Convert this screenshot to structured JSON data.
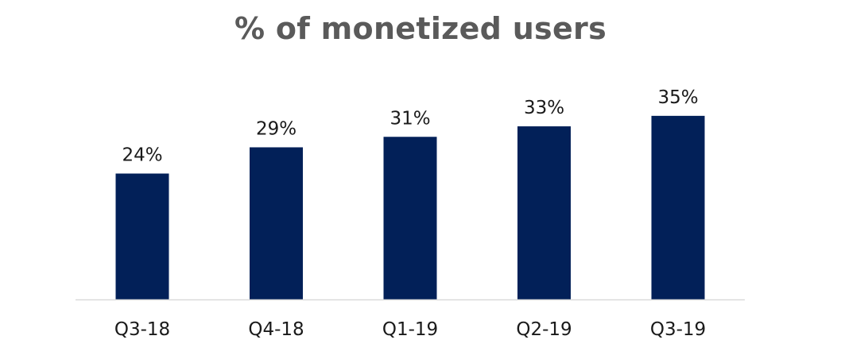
{
  "chart_data": {
    "type": "bar",
    "title": "% of monetized users",
    "categories": [
      "Q3-18",
      "Q4-18",
      "Q1-19",
      "Q2-19",
      "Q3-19"
    ],
    "values": [
      24,
      29,
      31,
      33,
      35
    ],
    "data_labels": [
      "24%",
      "29%",
      "31%",
      "33%",
      "35%"
    ],
    "ylim": [
      0,
      48
    ],
    "grid": false,
    "legend": "none",
    "colors": {
      "bar": "#022058",
      "axis": "#d9d9d9",
      "title": "#5a5a5a",
      "text": "#1a1a1a"
    }
  }
}
